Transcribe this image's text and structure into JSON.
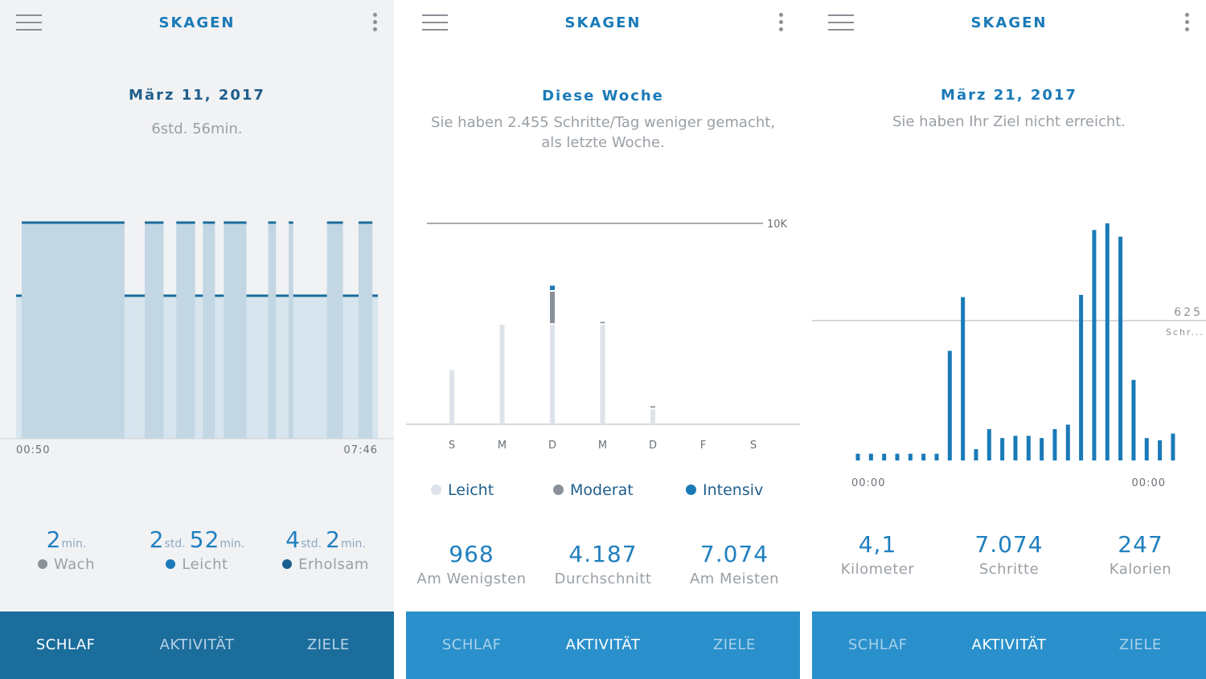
{
  "app": {
    "brand": "SKAGEN"
  },
  "colors": {
    "sleep_dark": "#1b6d9c",
    "sleep_bar": "#c2d6e3",
    "sleep_light": "#d7e5ee",
    "activity_light": "#dde3e8",
    "activity_moderate": "#8b9198",
    "activity_intense": "#1a7ab8",
    "nav_primary": "#2990cb"
  },
  "sleep": {
    "date": "März 11, 2017",
    "duration": "6std. 56min.",
    "time_start": "00:50",
    "time_end": "07:46",
    "stats": [
      {
        "num1": "2",
        "unit1": "min.",
        "num2": "",
        "unit2": "",
        "label": "Wach",
        "dot": "#8b9198"
      },
      {
        "num1": "2",
        "unit1": "std.",
        "num2": "52",
        "unit2": "min.",
        "label": "Leicht",
        "dot": "#1a7ab8"
      },
      {
        "num1": "4",
        "unit1": "std.",
        "num2": "2",
        "unit2": "min.",
        "label": "Erholsam",
        "dot": "#1b5f8f"
      }
    ],
    "chart_data": {
      "type": "area",
      "x_range": [
        "00:50",
        "07:46"
      ],
      "levels": [
        "Leicht",
        "Erholsam"
      ],
      "deep_segments": [
        [
          0.0,
          0.29
        ],
        [
          0.347,
          0.4
        ],
        [
          0.436,
          0.489
        ],
        [
          0.511,
          0.545
        ],
        [
          0.57,
          0.634
        ],
        [
          0.695,
          0.717
        ],
        [
          0.753,
          0.766
        ],
        [
          0.861,
          0.906
        ],
        [
          0.95,
          0.989
        ]
      ]
    },
    "nav": {
      "tab1": "SCHLAF",
      "tab2": "AKTIVITÄT",
      "tab3": "ZIELE"
    }
  },
  "week": {
    "title": "Diese Woche",
    "subtitle_line1": "Sie haben 2.455 Schritte/Tag weniger gemacht,",
    "subtitle_line2": "als letzte Woche.",
    "goal_label": "10K",
    "chart_data": {
      "type": "bar",
      "categories": [
        "S",
        "M",
        "D",
        "M",
        "D",
        "F",
        "S"
      ],
      "ymax": 10000,
      "series": [
        {
          "name": "Leicht",
          "values": [
            2700,
            4950,
            4950,
            4950,
            750,
            0,
            0
          ]
        },
        {
          "name": "Moderat",
          "values": [
            0,
            0,
            1650,
            150,
            150,
            0,
            0
          ]
        },
        {
          "name": "Intensiv",
          "values": [
            0,
            0,
            300,
            0,
            0,
            0,
            0
          ]
        }
      ]
    },
    "legend": [
      {
        "label": "Leicht",
        "color": "#dde3e8"
      },
      {
        "label": "Moderat",
        "color": "#8b9198"
      },
      {
        "label": "Intensiv",
        "color": "#1a7ab8"
      }
    ],
    "stats": [
      {
        "value": "968",
        "label": "Am Wenigsten"
      },
      {
        "value": "4.187",
        "label": "Durchschnitt"
      },
      {
        "value": "7.074",
        "label": "Am Meisten"
      }
    ],
    "nav": {
      "tab1": "SCHLAF",
      "tab2": "AKTIVITÄT",
      "tab3": "ZIELE"
    }
  },
  "day": {
    "date": "März 21, 2017",
    "subtitle": "Sie haben Ihr Ziel nicht erreicht.",
    "goal_value": "625",
    "goal_unit": "Schr...",
    "time_start": "00:00",
    "time_end": "00:00",
    "chart_data": {
      "type": "bar",
      "x_range": [
        "00:00",
        "00:00"
      ],
      "goal": 625,
      "values": [
        30,
        30,
        30,
        30,
        30,
        30,
        30,
        490,
        730,
        50,
        140,
        100,
        110,
        110,
        100,
        140,
        160,
        740,
        1030,
        1060,
        1000,
        360,
        100,
        90,
        120
      ]
    },
    "stats": [
      {
        "value": "4,1",
        "label": "Kilometer"
      },
      {
        "value": "7.074",
        "label": "Schritte"
      },
      {
        "value": "247",
        "label": "Kalorien"
      }
    ],
    "nav": {
      "tab1": "SCHLAF",
      "tab2": "AKTIVITÄT",
      "tab3": "ZIELE"
    }
  }
}
